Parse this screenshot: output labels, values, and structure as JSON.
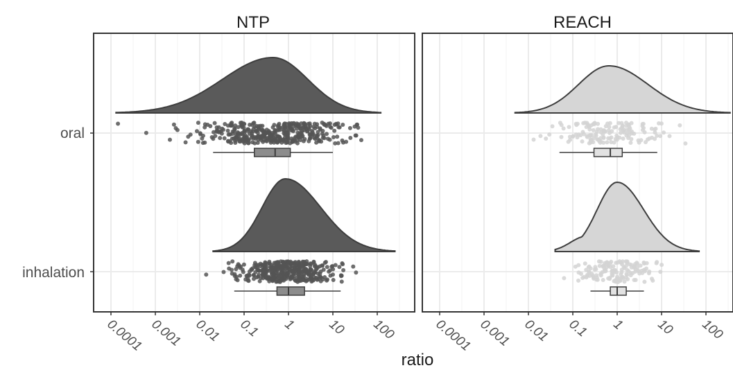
{
  "chart_data": {
    "type": "raincloud",
    "x_label": "ratio",
    "x_scale": "log10",
    "x_ticks": [
      0.0001,
      0.001,
      0.01,
      0.1,
      1,
      10,
      100
    ],
    "x_tick_labels": [
      "0.0001",
      "0.001",
      "0.01",
      "0.1",
      "1",
      "10",
      "100"
    ],
    "categories": [
      "oral",
      "inhalation"
    ],
    "grid": true,
    "panels": [
      {
        "title": "NTP",
        "density_color": "#5a5a5a",
        "point_color": "#555555",
        "box_fill": "#8c8c8c",
        "series": [
          {
            "category": "oral",
            "density_range": [
              0.00013,
              120
            ],
            "density_peak": 0.45,
            "box": {
              "min": 0.02,
              "q1": 0.17,
              "median": 0.5,
              "q3": 1.1,
              "max": 10
            }
          },
          {
            "category": "inhalation",
            "density_range": [
              0.02,
              250
            ],
            "density_peak": 0.85,
            "box": {
              "min": 0.06,
              "q1": 0.55,
              "median": 1.0,
              "q3": 2.3,
              "max": 15
            }
          }
        ]
      },
      {
        "title": "REACH",
        "density_color": "#d6d6d6",
        "point_color": "#d3d3d3",
        "box_fill": "#e2e2e2",
        "series": [
          {
            "category": "oral",
            "density_range": [
              0.005,
              350
            ],
            "density_peak": 0.65,
            "box": {
              "min": 0.05,
              "q1": 0.3,
              "median": 0.7,
              "q3": 1.3,
              "max": 8
            }
          },
          {
            "category": "inhalation",
            "density_range": [
              0.04,
              70
            ],
            "density_peak": 1.0,
            "box": {
              "min": 0.25,
              "q1": 0.7,
              "median": 1.0,
              "q3": 1.6,
              "max": 4
            }
          }
        ]
      }
    ]
  }
}
